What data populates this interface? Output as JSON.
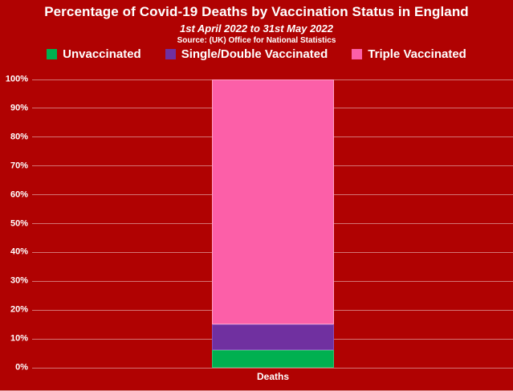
{
  "header": {
    "title": "Percentage of Covid-19 Deaths by Vaccination Status in England",
    "subtitle": "1st April 2022 to 31st May 2022",
    "source": "Source: (UK) Office for National Statistics"
  },
  "colors": {
    "background": "#b00202",
    "gridline": "rgba(255,255,255,0.45)",
    "text": "#ffffff",
    "unvaccinated": "#00b050",
    "single_double": "#7030a0",
    "triple": "#fc5fa8"
  },
  "chart_data": {
    "type": "bar",
    "stacked": true,
    "title": "Percentage of Covid-19 Deaths by Vaccination Status in England",
    "subtitle": "1st April 2022 to 31st May 2022",
    "source": "Source: (UK) Office for National Statistics",
    "categories": [
      "Deaths"
    ],
    "series": [
      {
        "name": "Unvaccinated",
        "values": [
          6
        ],
        "color": "#00b050",
        "border_color": "#2fc46f"
      },
      {
        "name": "Single/Double Vaccinated",
        "values": [
          9
        ],
        "color": "#7030a0",
        "border_color": "#8a50bd"
      },
      {
        "name": "Triple Vaccinated",
        "values": [
          85
        ],
        "color": "#fc5fa8",
        "border_color": "#ff9dc6"
      }
    ],
    "xlabel": "",
    "ylabel": "",
    "ylim": [
      0,
      100
    ],
    "yticks": [
      {
        "label": "0%",
        "value": 0
      },
      {
        "label": "10%",
        "value": 10
      },
      {
        "label": "20%",
        "value": 20
      },
      {
        "label": "30%",
        "value": 30
      },
      {
        "label": "40%",
        "value": 40
      },
      {
        "label": "50%",
        "value": 50
      },
      {
        "label": "60%",
        "value": 60
      },
      {
        "label": "70%",
        "value": 70
      },
      {
        "label": "80%",
        "value": 80
      },
      {
        "label": "90%",
        "value": 90
      },
      {
        "label": "100%",
        "value": 100
      }
    ],
    "grid": true,
    "legend_position": "top",
    "legend": [
      {
        "label": "Unvaccinated",
        "color": "#00b050"
      },
      {
        "label": "Single/Double Vaccinated",
        "color": "#7030a0"
      },
      {
        "label": "Triple Vaccinated",
        "color": "#fc5fa8"
      }
    ]
  }
}
